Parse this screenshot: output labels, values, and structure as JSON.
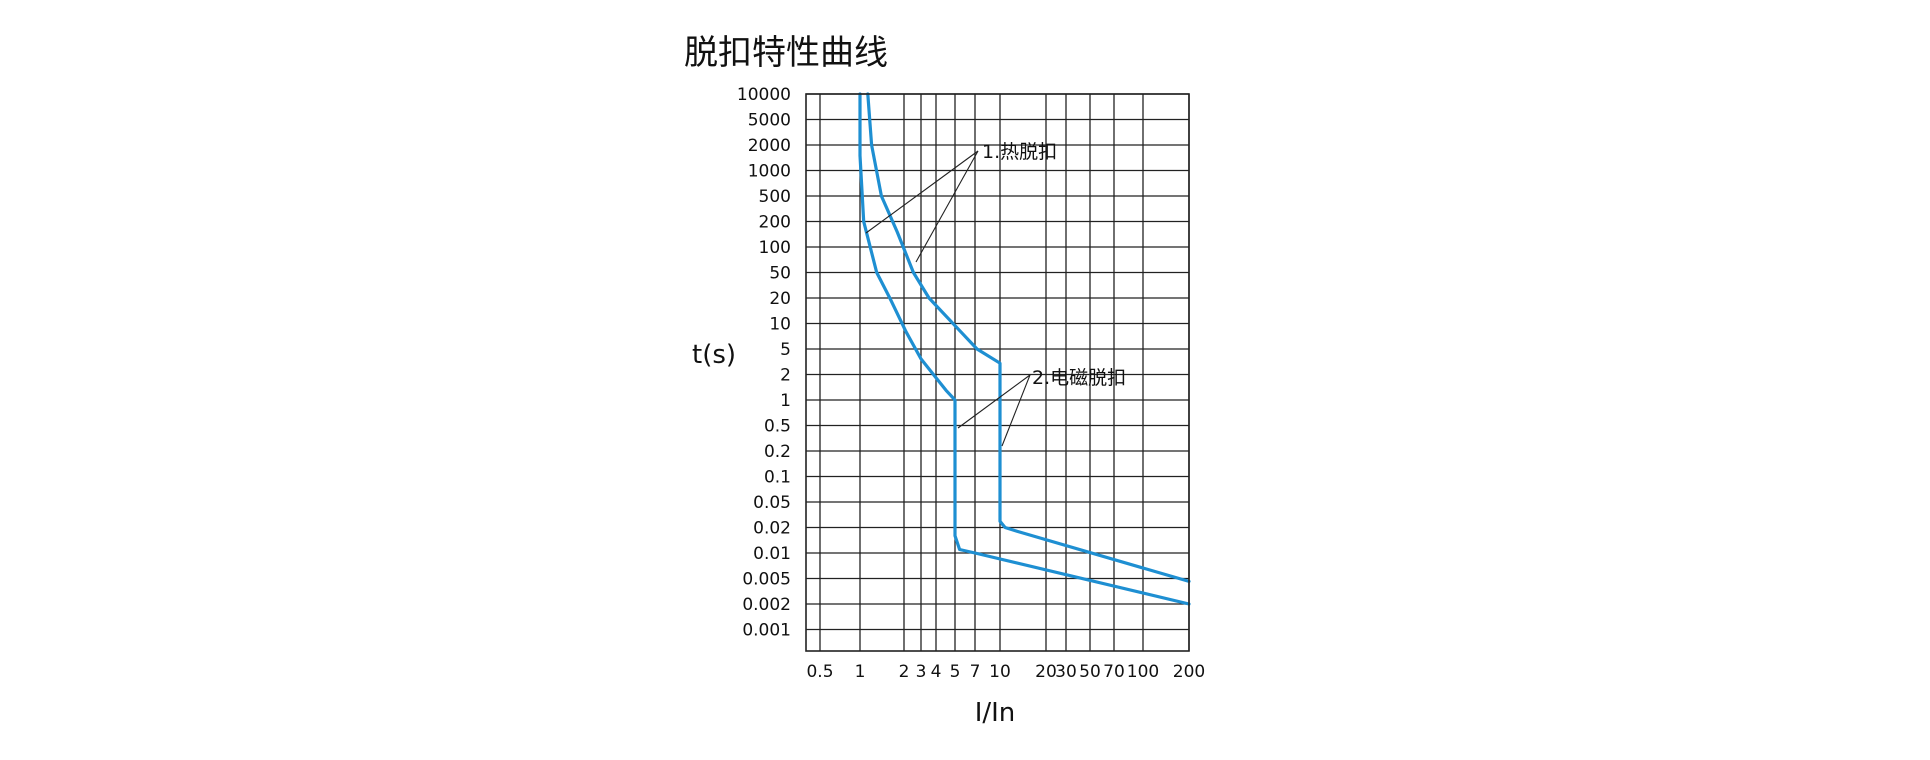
{
  "chart_data": {
    "type": "line",
    "title": "脱扣特性曲线",
    "xlabel": "I/In",
    "ylabel": "t(s)",
    "x_scale": "log",
    "y_scale": "log",
    "xlim": [
      0.35,
      200
    ],
    "ylim": [
      0.0005,
      10000
    ],
    "x_ticks": [
      {
        "label": "0.5",
        "value": 0.5
      },
      {
        "label": "1",
        "value": 1
      },
      {
        "label": "2",
        "value": 2
      },
      {
        "label": "3",
        "value": 3
      },
      {
        "label": "4",
        "value": 4
      },
      {
        "label": "5",
        "value": 5
      },
      {
        "label": "7",
        "value": 7
      },
      {
        "label": "10",
        "value": 10
      },
      {
        "label": "20",
        "value": 20
      },
      {
        "label": "30",
        "value": 30
      },
      {
        "label": "50",
        "value": 50
      },
      {
        "label": "70",
        "value": 70
      },
      {
        "label": "100",
        "value": 100
      },
      {
        "label": "200",
        "value": 200
      }
    ],
    "y_ticks": [
      {
        "label": "10000",
        "value": 10000
      },
      {
        "label": "5000",
        "value": 5000
      },
      {
        "label": "2000",
        "value": 2000
      },
      {
        "label": "1000",
        "value": 1000
      },
      {
        "label": "500",
        "value": 500
      },
      {
        "label": "200",
        "value": 200
      },
      {
        "label": "100",
        "value": 100
      },
      {
        "label": "50",
        "value": 50
      },
      {
        "label": "20",
        "value": 20
      },
      {
        "label": "10",
        "value": 10
      },
      {
        "label": "5",
        "value": 5
      },
      {
        "label": "2",
        "value": 2
      },
      {
        "label": "1",
        "value": 1
      },
      {
        "label": "0.5",
        "value": 0.5
      },
      {
        "label": "0.2",
        "value": 0.2
      },
      {
        "label": "0.1",
        "value": 0.1
      },
      {
        "label": "0.05",
        "value": 0.05
      },
      {
        "label": "0.02",
        "value": 0.02
      },
      {
        "label": "0.01",
        "value": 0.01
      },
      {
        "label": "0.005",
        "value": 0.005
      },
      {
        "label": "0.002",
        "value": 0.002
      },
      {
        "label": "0.001",
        "value": 0.001
      }
    ],
    "grid": true,
    "series_color": "#1e8fd2",
    "series": [
      {
        "points": [
          [
            1.0,
            10000
          ],
          [
            1.0,
            1500
          ],
          [
            1.06,
            200
          ],
          [
            1.3,
            50
          ],
          [
            1.6,
            20
          ],
          [
            2.1,
            8
          ],
          [
            3.0,
            3.5
          ],
          [
            4.5,
            1.3
          ],
          [
            5.0,
            1.0
          ],
          [
            5.0,
            0.016
          ],
          [
            5.4,
            0.011
          ],
          [
            7.0,
            0.01
          ],
          [
            200,
            0.002
          ]
        ]
      },
      {
        "points": [
          [
            1.13,
            10000
          ],
          [
            1.2,
            2000
          ],
          [
            1.4,
            500
          ],
          [
            1.8,
            150
          ],
          [
            2.5,
            50
          ],
          [
            3.5,
            20
          ],
          [
            5.5,
            8
          ],
          [
            7.2,
            5
          ],
          [
            10.0,
            3
          ],
          [
            10.0,
            0.025
          ],
          [
            10.8,
            0.02
          ],
          [
            13.0,
            0.018
          ],
          [
            200,
            0.0045
          ]
        ]
      }
    ],
    "annotations": [
      {
        "text": "1.热脱扣"
      },
      {
        "text": "2.电磁脱扣"
      }
    ]
  }
}
